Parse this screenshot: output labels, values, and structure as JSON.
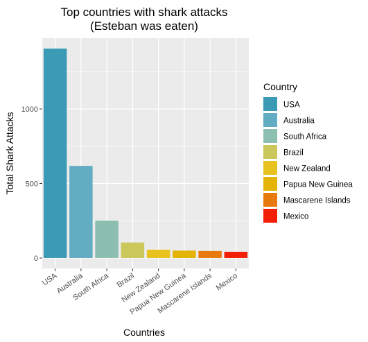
{
  "chart_data": {
    "type": "bar",
    "title": "Top countries with shark attacks",
    "subtitle": "(Esteban was eaten)",
    "xlabel": "Countries",
    "ylabel": "Total Shark Attacks",
    "categories": [
      "USA",
      "Australia",
      "South Africa",
      "Brazil",
      "New Zealand",
      "Papua New Guinea",
      "Mascarene Islands",
      "Mexico"
    ],
    "values": [
      1405,
      618,
      251,
      104,
      56,
      50,
      47,
      42
    ],
    "colors": [
      "#3b9ab6",
      "#62adc1",
      "#8dbfb0",
      "#cbc75a",
      "#e8c320",
      "#e3b406",
      "#e87a0d",
      "#f21f06"
    ],
    "yticks": [
      0,
      500,
      1000
    ],
    "ylim": [
      -70,
      1475
    ],
    "grid": true,
    "legend": {
      "title": "Country",
      "position": "right"
    }
  }
}
